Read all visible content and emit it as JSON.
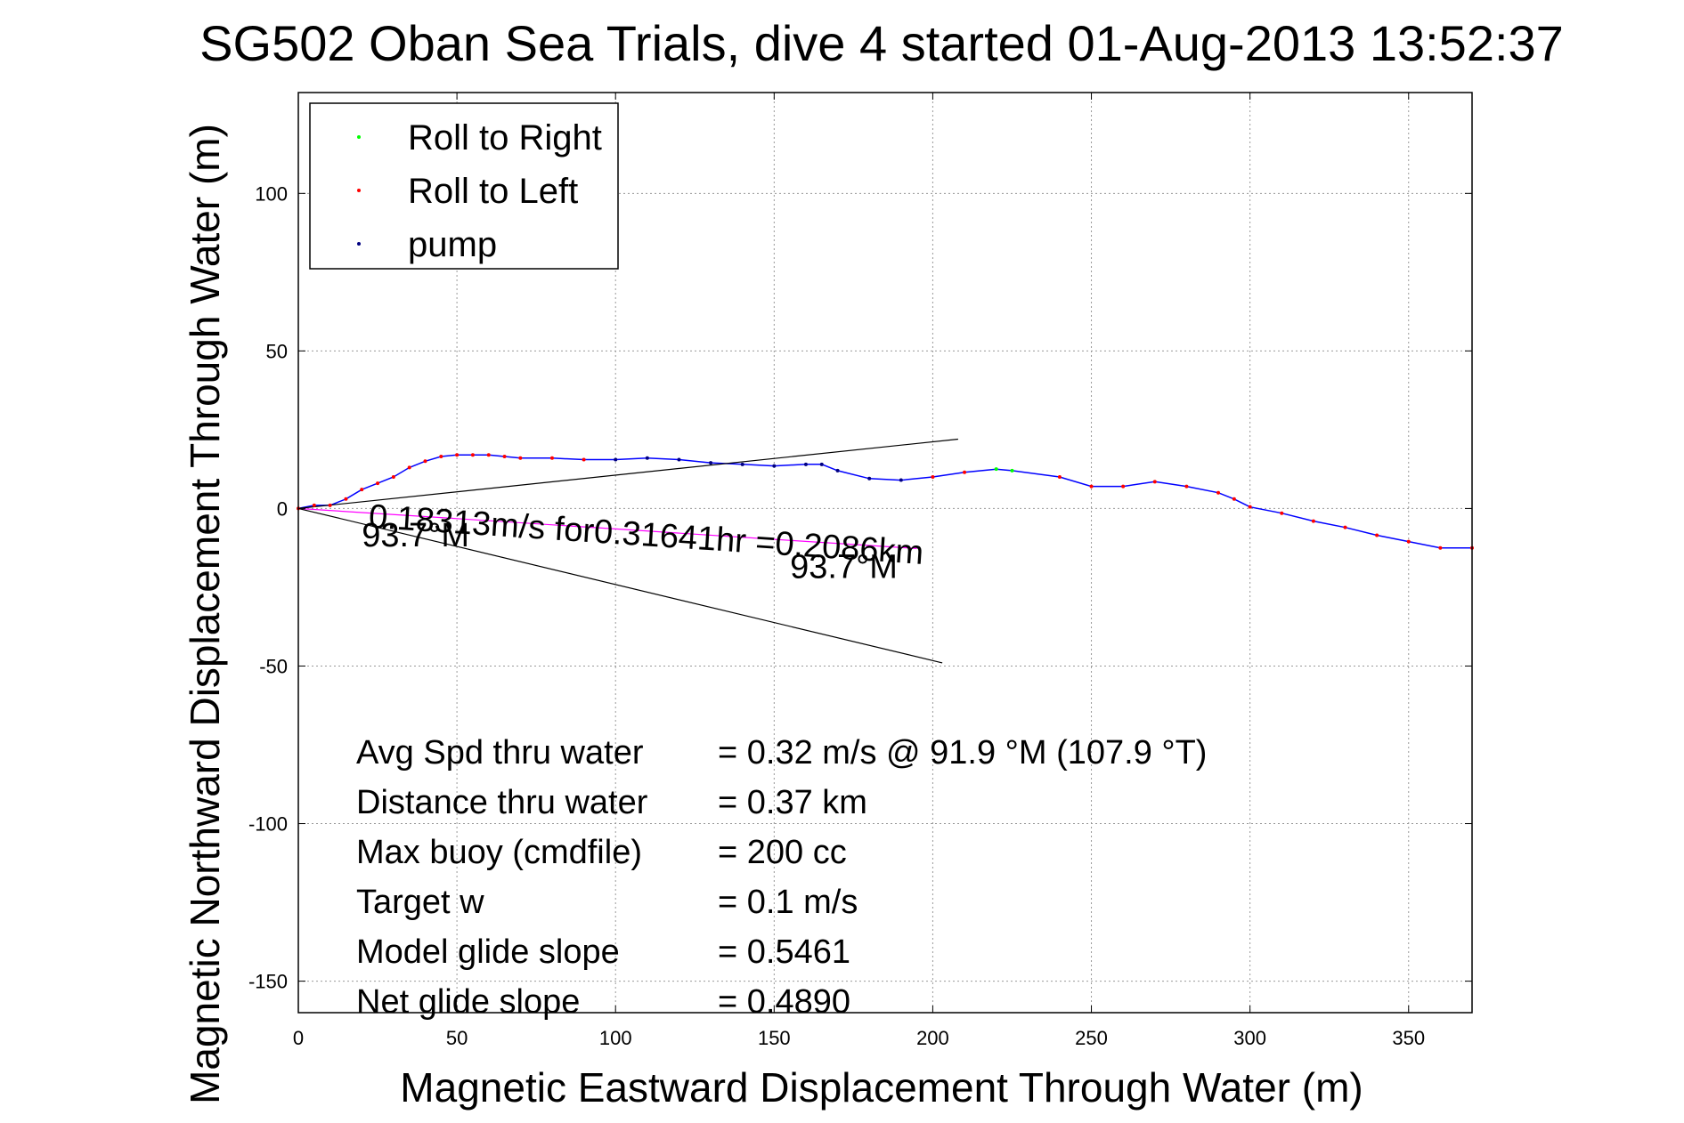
{
  "chart_data": {
    "type": "line",
    "title": "SG502 Oban Sea Trials, dive 4 started 01-Aug-2013 13:52:37",
    "xlabel": "Magnetic Eastward Displacement Through Water (m)",
    "ylabel": "Magnetic Northward Displacement Through Water (m)",
    "xlim": [
      0,
      370
    ],
    "ylim": [
      -160,
      132
    ],
    "x_ticks": [
      0,
      50,
      100,
      150,
      200,
      250,
      300,
      350
    ],
    "y_ticks": [
      -150,
      -100,
      -50,
      0,
      50,
      100
    ],
    "grid": true,
    "legend_position": "top-left",
    "legend": [
      {
        "label": "Roll to Right",
        "color": "#00ff00"
      },
      {
        "label": "Roll to Left",
        "color": "#ff0000"
      },
      {
        "label": "pump",
        "color": "#000080"
      }
    ],
    "series": [
      {
        "color": "#0000ff",
        "x": [
          0,
          5,
          10,
          15,
          20,
          25,
          30,
          35,
          40,
          45,
          50,
          55,
          60,
          65,
          70,
          80,
          90,
          100,
          110,
          120,
          130,
          140,
          150,
          160,
          165,
          170,
          180,
          190,
          200,
          210,
          220,
          225,
          240,
          250,
          260,
          270,
          280,
          290,
          295,
          300,
          310,
          320,
          330,
          340,
          350,
          360,
          370
        ],
        "y": [
          0,
          1,
          1,
          3,
          6,
          8,
          10,
          13,
          15,
          16.5,
          17,
          17,
          17,
          16.5,
          16,
          16,
          15.5,
          15.5,
          16,
          15.5,
          14.5,
          14,
          13.5,
          14,
          14,
          12,
          9.5,
          9,
          10,
          11.5,
          12.5,
          12,
          10,
          7,
          7,
          8.5,
          7,
          5,
          3,
          0.5,
          -1.5,
          -4,
          -6,
          -8.5,
          -10.5,
          -12.5,
          -12.5
        ]
      },
      {
        "color": "#ff00ff",
        "x": [
          0,
          25,
          50,
          100,
          150,
          195
        ],
        "y": [
          0,
          -1.6,
          -3.2,
          -6.5,
          -9.8,
          -12.7
        ]
      },
      {
        "color": "#000000",
        "x": [
          0,
          208
        ],
        "y": [
          0,
          22
        ]
      },
      {
        "color": "#000000",
        "x": [
          0,
          203
        ],
        "y": [
          0,
          -49
        ]
      }
    ],
    "annotations": [
      {
        "text": "0.18313m/s for0.31641hr =0.2086km",
        "x": 22,
        "y": -6,
        "angle": -3.8
      },
      {
        "text": "93.7°M",
        "x": 20,
        "y": -12
      },
      {
        "text": "93.7°M",
        "x": 155,
        "y": -22
      }
    ],
    "stats": [
      {
        "label": "Avg Spd thru water",
        "value": "=  0.32 m/s @  91.9 °M (107.9 °T)"
      },
      {
        "label": "Distance thru water",
        "value": "=  0.37 km"
      },
      {
        "label": "Max buoy (cmdfile)",
        "value": "= 200 cc"
      },
      {
        "label": "Target w",
        "value": "= 0.1 m/s"
      },
      {
        "label": "Model glide slope",
        "value": "= 0.5461"
      },
      {
        "label": "Net glide slope",
        "value": "= 0.4890"
      }
    ]
  }
}
